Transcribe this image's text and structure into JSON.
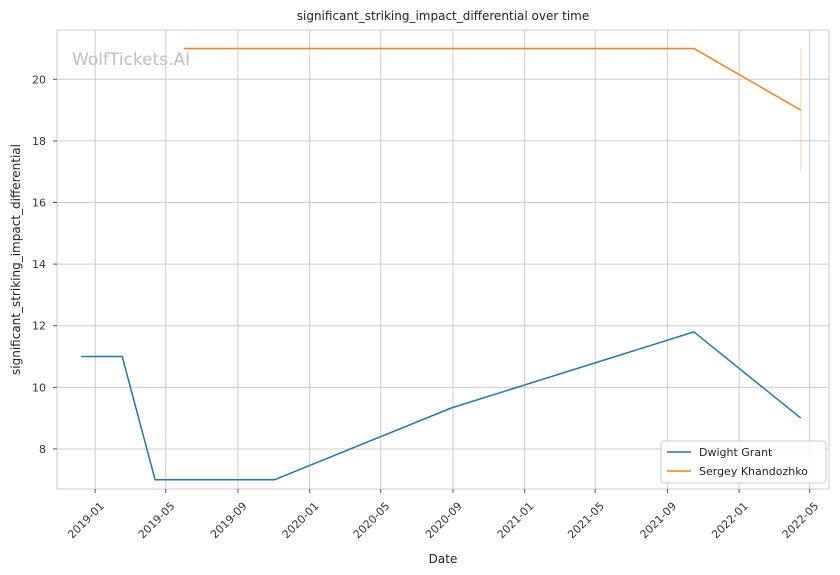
{
  "watermark": "WolfTickets.AI",
  "chart_data": {
    "type": "line",
    "title": "significant_striking_impact_differential over time",
    "xlabel": "Date",
    "ylabel": "significant_striking_impact_differential",
    "x_ticks": [
      "2019-01",
      "2019-05",
      "2019-09",
      "2020-01",
      "2020-05",
      "2020-09",
      "2021-01",
      "2021-05",
      "2021-09",
      "2022-01",
      "2022-05"
    ],
    "y_ticks": [
      8,
      10,
      12,
      14,
      16,
      18,
      20
    ],
    "xlim": [
      "2018-10-28",
      "2022-06-03"
    ],
    "ylim": [
      6.7,
      21.6
    ],
    "grid": true,
    "legend_position": "lower-right",
    "series": [
      {
        "name": "Dwight Grant",
        "color": "#1f77b4",
        "points": [
          {
            "x": "2018-12-08",
            "y": 11.0
          },
          {
            "x": "2019-02-16",
            "y": 11.0
          },
          {
            "x": "2019-04-13",
            "y": 7.0
          },
          {
            "x": "2019-11-02",
            "y": 7.0
          },
          {
            "x": "2020-08-29",
            "y": 9.33
          },
          {
            "x": "2021-10-16",
            "y": 11.8
          },
          {
            "x": "2022-04-16",
            "y": 9.0
          }
        ]
      },
      {
        "name": "Sergey Khandozhko",
        "color": "#ff7f0e",
        "points": [
          {
            "x": "2019-06-01",
            "y": 21.0
          },
          {
            "x": "2021-10-16",
            "y": 21.0
          },
          {
            "x": "2022-04-16",
            "y": 19.0
          }
        ],
        "error_bar": {
          "x": "2022-04-16",
          "low": 17.0,
          "high": 21.0
        }
      }
    ]
  }
}
